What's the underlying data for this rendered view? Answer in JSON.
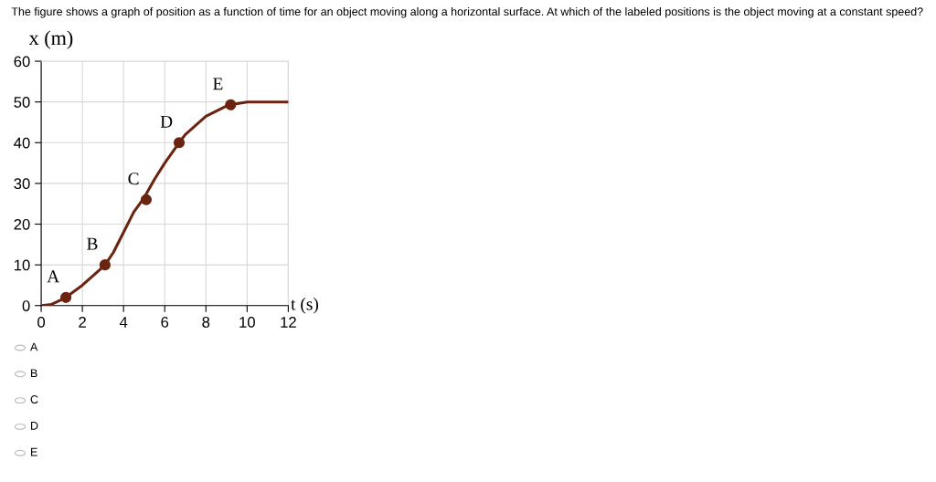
{
  "chart_data": {
    "type": "line",
    "title": "The figure shows a graph of position as a function of time for an object moving along a horizontal surface. At which of the labeled positions is the object moving at a constant speed?",
    "xlabel": "t (s)",
    "ylabel": "x (m)",
    "xlim": [
      0,
      12
    ],
    "ylim": [
      0,
      60
    ],
    "xticks": [
      0,
      2,
      4,
      6,
      8,
      10,
      12
    ],
    "yticks": [
      0,
      10,
      20,
      30,
      40,
      50,
      60
    ],
    "grid": true,
    "series": [
      {
        "color": "#6b2410",
        "marker": "none",
        "x": [
          0,
          0.5,
          1,
          1.2,
          2,
          3,
          3.1,
          3.5,
          4,
          4.5,
          5,
          5.5,
          6,
          6.7,
          7,
          8,
          9,
          9.2,
          10,
          11,
          12
        ],
        "values": [
          0,
          0.3,
          1.5,
          2,
          5,
          9.5,
          10,
          13,
          18,
          23,
          26.5,
          31,
          35,
          40,
          42,
          46.5,
          49,
          49.3,
          50,
          50,
          50
        ]
      },
      {
        "type": "scatter",
        "color": "#6b2410",
        "marker": "circle",
        "x": [
          1.2,
          3.1,
          5.1,
          6.7,
          9.2
        ],
        "values": [
          2,
          10,
          26,
          40,
          49.3
        ]
      }
    ],
    "annotations": [
      {
        "text": "A",
        "x": 1.2,
        "y": 2
      },
      {
        "text": "B",
        "x": 3.1,
        "y": 10
      },
      {
        "text": "C",
        "x": 5.1,
        "y": 26
      },
      {
        "text": "D",
        "x": 6.7,
        "y": 40
      },
      {
        "text": "E",
        "x": 9.2,
        "y": 49.3
      },
      "A",
      "B",
      "C",
      "D",
      "E"
    ]
  }
}
